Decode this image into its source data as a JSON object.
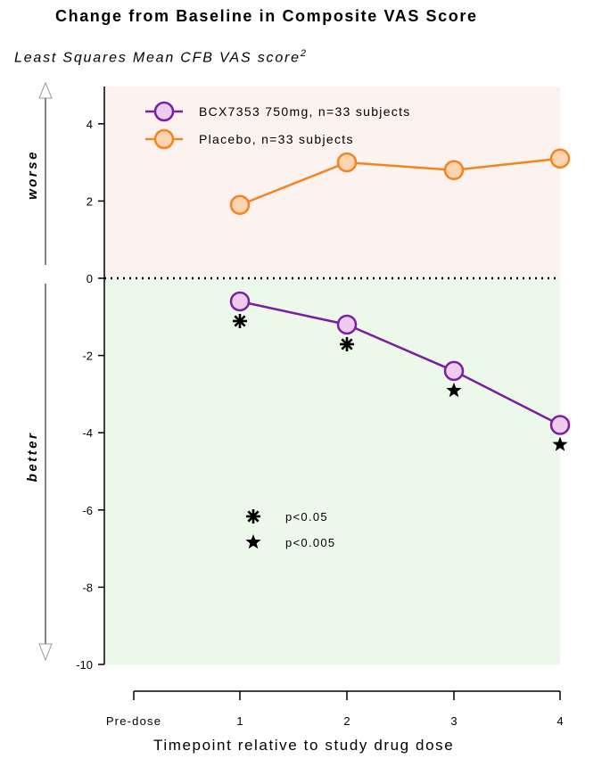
{
  "chart_data": {
    "type": "line",
    "title": "Change from Baseline in Composite VAS Score",
    "ylabel": "Least Squares Mean CFB VAS score",
    "ylabel_superscript": "2",
    "xlabel": "Timepoint relative to study drug dose",
    "categories": [
      "Pre-dose",
      "1",
      "2",
      "3",
      "4"
    ],
    "ylim": [
      -10,
      5
    ],
    "yticks": [
      4,
      2,
      0,
      -2,
      -4,
      -6,
      -8,
      -10
    ],
    "region_labels": {
      "upper": "worse",
      "lower": "better"
    },
    "region_colors": {
      "upper": "#fcf2ef",
      "lower": "#ecf8ea"
    },
    "series": [
      {
        "name": "BCX7353 750mg, n=33 subjects",
        "color": "#7b1fa2",
        "fill": "#eeccef",
        "x": [
          "1",
          "2",
          "3",
          "4"
        ],
        "values": [
          -0.6,
          -1.2,
          -2.4,
          -3.8
        ],
        "significance": [
          "p<0.05",
          "p<0.05",
          "p<0.005",
          "p<0.005"
        ]
      },
      {
        "name": "Placebo, n=33 subjects",
        "color": "#f5841f",
        "fill": "#fdd3b0",
        "x": [
          "1",
          "2",
          "3",
          "4"
        ],
        "values": [
          1.9,
          3.0,
          2.8,
          3.1
        ]
      }
    ],
    "significance_legend": [
      {
        "marker": "asterisk",
        "label": "p<0.05"
      },
      {
        "marker": "star",
        "label": "p<0.005"
      }
    ],
    "legend_position": "top-left"
  }
}
